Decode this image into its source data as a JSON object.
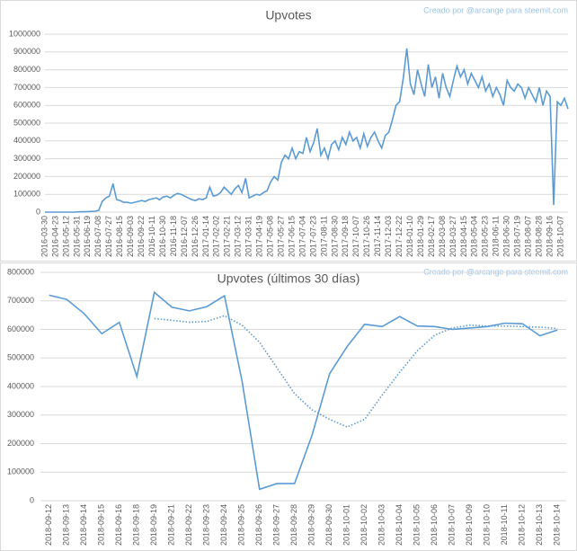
{
  "chart_data": [
    {
      "type": "line",
      "title": "Upvotes",
      "credit": "Creado por @arcange para steemit.com",
      "categories": [
        "2016-03-30",
        null,
        null,
        "2016-04-23",
        null,
        null,
        "2016-05-12",
        null,
        null,
        "2016-05-31",
        null,
        null,
        "2016-06-19",
        null,
        null,
        "2016-07-08",
        null,
        null,
        "2016-07-27",
        null,
        null,
        "2016-08-15",
        null,
        null,
        "2016-09-03",
        null,
        null,
        "2016-09-22",
        null,
        null,
        "2016-10-11",
        null,
        null,
        "2016-10-30",
        null,
        null,
        "2016-11-18",
        null,
        null,
        "2016-12-07",
        null,
        null,
        "2016-12-26",
        null,
        null,
        "2017-01-14",
        null,
        null,
        "2017-02-02",
        null,
        null,
        "2017-02-21",
        null,
        null,
        "2017-03-12",
        null,
        null,
        "2017-03-31",
        null,
        null,
        "2017-04-19",
        null,
        null,
        "2017-05-08",
        null,
        null,
        "2017-05-27",
        null,
        null,
        "2017-06-15",
        null,
        null,
        "2017-07-04",
        null,
        null,
        "2017-07-23",
        null,
        null,
        "2017-08-11",
        null,
        null,
        "2017-08-30",
        null,
        null,
        "2017-09-18",
        null,
        null,
        "2017-10-07",
        null,
        null,
        "2017-10-26",
        null,
        null,
        "2017-11-14",
        null,
        null,
        "2017-12-03",
        null,
        null,
        "2017-12-22",
        null,
        null,
        "2018-01-10",
        null,
        null,
        "2018-01-29",
        null,
        null,
        "2018-02-17",
        null,
        null,
        "2018-03-08",
        null,
        null,
        "2018-03-27",
        null,
        null,
        "2018-04-15",
        null,
        null,
        "2018-05-04",
        null,
        null,
        "2018-05-23",
        null,
        null,
        "2018-06-11",
        null,
        null,
        "2018-06-30",
        null,
        null,
        "2018-07-19",
        null,
        null,
        "2018-08-07",
        null,
        null,
        "2018-08-28",
        null,
        null,
        "2018-09-16",
        null,
        null,
        "2018-10-07",
        null,
        null
      ],
      "series": [
        {
          "color": "#5b9bd5",
          "values": [
            0,
            0,
            0,
            0,
            0,
            0,
            0,
            0,
            0,
            1000,
            2000,
            2000,
            3000,
            4000,
            5000,
            10000,
            60000,
            80000,
            90000,
            160000,
            70000,
            65000,
            55000,
            55000,
            50000,
            55000,
            60000,
            65000,
            60000,
            70000,
            75000,
            80000,
            70000,
            85000,
            90000,
            80000,
            95000,
            105000,
            100000,
            90000,
            80000,
            70000,
            65000,
            75000,
            70000,
            80000,
            140000,
            90000,
            95000,
            110000,
            140000,
            120000,
            100000,
            130000,
            150000,
            110000,
            190000,
            80000,
            90000,
            100000,
            95000,
            110000,
            120000,
            170000,
            200000,
            180000,
            280000,
            320000,
            300000,
            360000,
            300000,
            340000,
            330000,
            420000,
            340000,
            390000,
            470000,
            320000,
            360000,
            300000,
            380000,
            400000,
            350000,
            420000,
            380000,
            450000,
            400000,
            420000,
            360000,
            440000,
            370000,
            420000,
            450000,
            400000,
            360000,
            430000,
            450000,
            520000,
            600000,
            620000,
            750000,
            920000,
            720000,
            660000,
            800000,
            720000,
            650000,
            830000,
            700000,
            760000,
            640000,
            780000,
            700000,
            650000,
            740000,
            820000,
            760000,
            800000,
            720000,
            780000,
            740000,
            700000,
            760000,
            680000,
            720000,
            650000,
            700000,
            660000,
            600000,
            740000,
            700000,
            680000,
            720000,
            700000,
            640000,
            700000,
            660000,
            620000,
            700000,
            600000,
            680000,
            650000,
            40000,
            620000,
            600000,
            640000,
            580000
          ]
        }
      ],
      "ylim": [
        0,
        1000000
      ],
      "yticks": [
        0,
        100000,
        200000,
        300000,
        400000,
        500000,
        600000,
        700000,
        800000,
        900000,
        1000000
      ],
      "grid": true
    },
    {
      "type": "line",
      "title": "Upvotes (últimos 30 días)",
      "credit": "Creado por @arcange para steemit.com",
      "categories": [
        "2018-09-12",
        "2018-09-13",
        "2018-09-14",
        "2018-09-15",
        "2018-09-16",
        "2018-09-18",
        "2018-09-19",
        "2018-09-21",
        "2018-09-22",
        "2018-09-23",
        "2018-09-24",
        "2018-09-25",
        "2018-09-26",
        "2018-09-27",
        "2018-09-28",
        "2018-09-29",
        "2018-09-30",
        "2018-10-01",
        "2018-10-02",
        "2018-10-03",
        "2018-10-04",
        "2018-10-05",
        "2018-10-06",
        "2018-10-07",
        "2018-10-09",
        "2018-10-10",
        "2018-10-11",
        "2018-10-12",
        "2018-10-13",
        "2018-10-14"
      ],
      "series": [
        {
          "color": "#5b9bd5",
          "dash": "solid",
          "values": [
            720000,
            705000,
            655000,
            585000,
            625000,
            435000,
            730000,
            678000,
            665000,
            680000,
            718000,
            420000,
            40000,
            60000,
            60000,
            230000,
            445000,
            540000,
            618000,
            610000,
            645000,
            612000,
            610000,
            600000,
            605000,
            610000,
            622000,
            620000,
            578000,
            598000
          ]
        },
        {
          "color": "#5b9bd5",
          "dash": "dotted",
          "values": [
            null,
            null,
            null,
            null,
            null,
            null,
            638000,
            632000,
            625000,
            628000,
            648000,
            615000,
            555000,
            465000,
            375000,
            318000,
            285000,
            258000,
            285000,
            370000,
            450000,
            525000,
            580000,
            605000,
            615000,
            612000,
            612000,
            610000,
            608000,
            603000
          ]
        }
      ],
      "ylim": [
        0,
        800000
      ],
      "yticks": [
        0,
        100000,
        200000,
        300000,
        400000,
        500000,
        600000,
        700000,
        800000
      ],
      "grid": true
    }
  ]
}
